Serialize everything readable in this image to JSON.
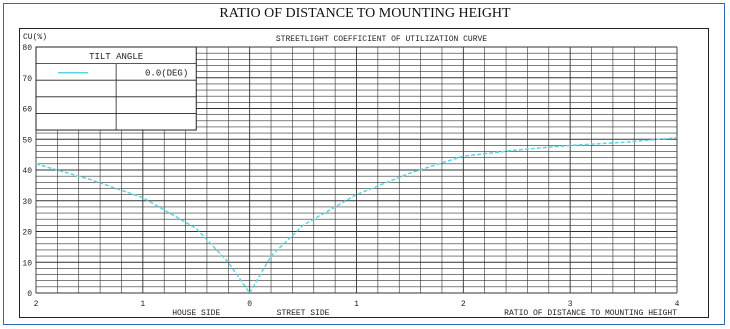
{
  "top_title": "RATIO OF DISTANCE TO MOUNTING HEIGHT",
  "chart_data": {
    "type": "line",
    "title": "STREETLIGHT COEFFICIENT OF UTILIZATION CURVE",
    "ylabel": "CU(%)",
    "xlabel": "RATIO OF DISTANCE TO MOUNTING HEIGHT",
    "x_side_labels": {
      "left": "HOUSE SIDE",
      "right": "STREET SIDE"
    },
    "xlim": [
      -2,
      4
    ],
    "ylim": [
      0,
      80
    ],
    "x_ticks": [
      -2,
      -1,
      0,
      1,
      2,
      3,
      4
    ],
    "x_tick_labels": [
      "2",
      "1",
      "0",
      "1",
      "2",
      "3",
      "4"
    ],
    "y_ticks": [
      0,
      10,
      20,
      30,
      40,
      50,
      60,
      70,
      80
    ],
    "y_tick_labels": [
      "0",
      "10",
      "20",
      "30",
      "40",
      "50",
      "60",
      "70",
      "80"
    ],
    "grid": true,
    "legend": {
      "header": "TILT ANGLE",
      "placement": "top-left",
      "entries": [
        {
          "label": "0.0(DEG)",
          "color": "#5fd4e3"
        }
      ]
    },
    "series": [
      {
        "name": "0.0(DEG)",
        "color": "#5fd4e3",
        "x": [
          -2,
          -1.5,
          -1,
          -0.5,
          -0.2,
          0,
          0.2,
          0.5,
          1,
          1.5,
          2,
          2.5,
          3,
          3.5,
          4
        ],
        "y": [
          42,
          37,
          31,
          21,
          10,
          0,
          12,
          22,
          32,
          39,
          44.5,
          46.5,
          48,
          49,
          50.5
        ]
      }
    ]
  }
}
